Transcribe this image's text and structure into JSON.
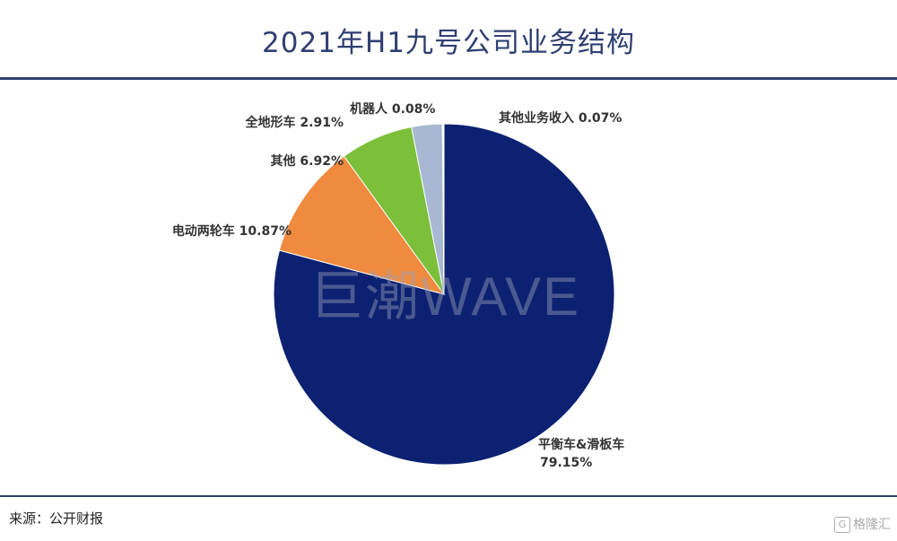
{
  "header": {
    "title": "2021年H1九号公司业务结构"
  },
  "footer": {
    "source": "来源：公开财报",
    "logo_text": "格隆汇",
    "logo_glyph": "G"
  },
  "watermark": "巨潮WAVE",
  "chart_data": {
    "type": "pie",
    "title": "2021年H1九号公司业务结构",
    "slices": [
      {
        "label": "平衡车&滑板车",
        "percent_text": "79.15%",
        "value": 79.15,
        "color": "#0c2171"
      },
      {
        "label": "电动两轮车",
        "percent_text": "10.87%",
        "value": 10.87,
        "color": "#f08a3e"
      },
      {
        "label": "其他",
        "percent_text": "6.92%",
        "value": 6.92,
        "color": "#7cbf3a"
      },
      {
        "label": "全地形车",
        "percent_text": "2.91%",
        "value": 2.91,
        "color": "#a9b8d2"
      },
      {
        "label": "机器人",
        "percent_text": "0.08%",
        "value": 0.08,
        "color": "#e0e0e0"
      },
      {
        "label": "其他业务收入",
        "percent_text": "0.07%",
        "value": 0.07,
        "color": "#f0f0f0"
      }
    ]
  }
}
